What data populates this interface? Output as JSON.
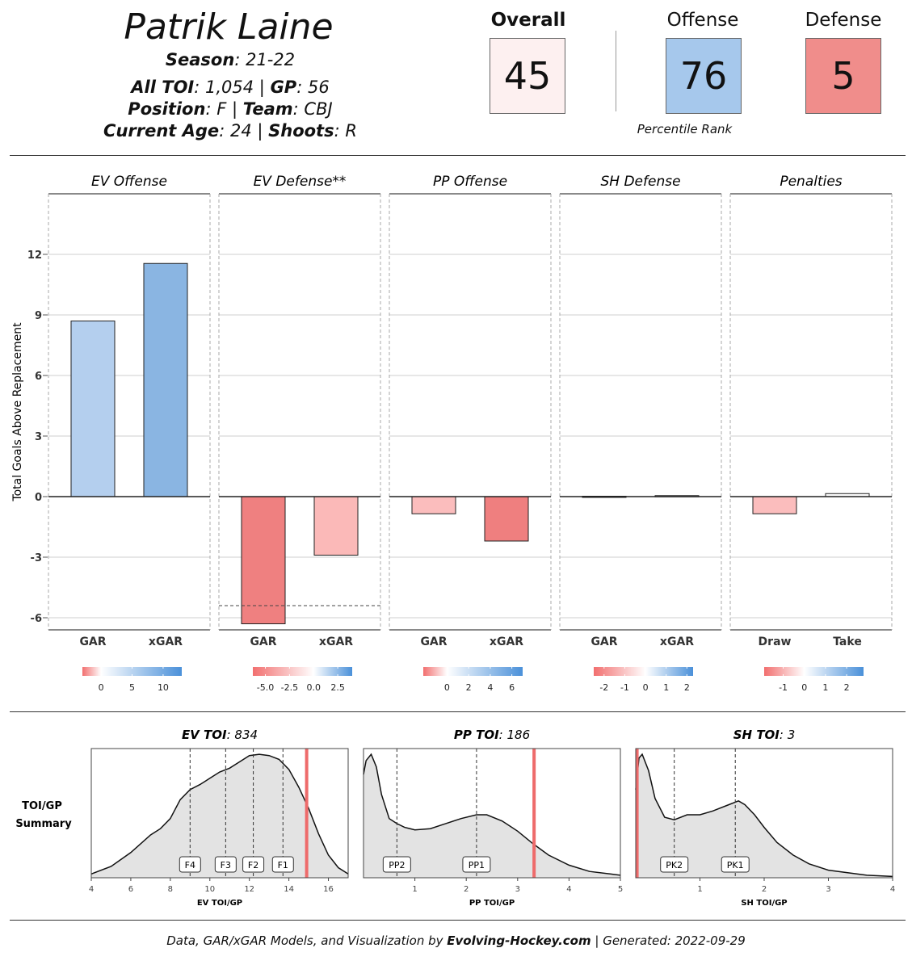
{
  "header": {
    "player_name": "Patrik Laine",
    "season_label": "Season",
    "season_value": "21-22",
    "toi_label": "All TOI",
    "toi_value": "1,054",
    "gp_label": "GP",
    "gp_value": "56",
    "position_label": "Position",
    "position_value": "F",
    "team_label": "Team",
    "team_value": "CBJ",
    "age_label": "Current Age",
    "age_value": "24",
    "shoots_label": "Shoots",
    "shoots_value": "R"
  },
  "ranks": {
    "overall_label": "Overall",
    "overall_value": "45",
    "overall_color": "#fdf0f0",
    "offense_label": "Offense",
    "offense_value": "76",
    "offense_color": "#a6c8ec",
    "defense_label": "Defense",
    "defense_value": "5",
    "defense_color": "#f08d8b",
    "subtitle": "Percentile Rank"
  },
  "chart_data": [
    {
      "type": "bar",
      "ylabel": "Total Goals Above Replacement",
      "ylim": [
        -6.6,
        15
      ],
      "yticks": [
        -6,
        -3,
        0,
        3,
        6,
        9,
        12
      ],
      "panels": [
        {
          "title": "EV Offense",
          "categories": [
            "GAR",
            "xGAR"
          ],
          "values": [
            8.7,
            11.55
          ],
          "colors": [
            "#b4cfee",
            "#8ab5e2"
          ],
          "legend_ticks": [
            "0",
            "5",
            "10"
          ],
          "legend_min": -3,
          "legend_max": 13
        },
        {
          "title": "EV Defense**",
          "categories": [
            "GAR",
            "xGAR"
          ],
          "values": [
            -6.3,
            -2.9
          ],
          "colors": [
            "#ef8080",
            "#fbb9b8"
          ],
          "reference_line": -5.4,
          "legend_ticks": [
            "-5.0",
            "-2.5",
            "0.0",
            "2.5"
          ],
          "legend_min": -6.3,
          "legend_max": 4.0
        },
        {
          "title": "PP Offense",
          "categories": [
            "GAR",
            "xGAR"
          ],
          "values": [
            -0.85,
            -2.2
          ],
          "colors": [
            "#fbbdbd",
            "#ef7f7f"
          ],
          "legend_ticks": [
            "0",
            "2",
            "4",
            "6"
          ],
          "legend_min": -2.2,
          "legend_max": 7.0
        },
        {
          "title": "SH Defense",
          "categories": [
            "GAR",
            "xGAR"
          ],
          "values": [
            0.02,
            0.05
          ],
          "colors": [
            "#fafafa",
            "#f7f7f7"
          ],
          "legend_ticks": [
            "-2",
            "-1",
            "0",
            "1",
            "2"
          ],
          "legend_min": -2.5,
          "legend_max": 2.3
        },
        {
          "title": "Penalties",
          "categories": [
            "Draw",
            "Take"
          ],
          "values": [
            -0.85,
            0.15
          ],
          "colors": [
            "#fbbdbd",
            "#fdfdfd"
          ],
          "legend_ticks": [
            "-1",
            "0",
            "1",
            "2"
          ],
          "legend_min": -1.9,
          "legend_max": 2.8
        }
      ]
    },
    {
      "type": "area",
      "row_label": "TOI/GP Summary",
      "panels": [
        {
          "title_label": "EV TOI",
          "title_value": "834",
          "xlabel": "EV TOI/GP",
          "xlim": [
            4,
            17
          ],
          "xticks": [
            4,
            6,
            8,
            10,
            12,
            14,
            16
          ],
          "player_value": 14.9,
          "markers": [
            {
              "label": "F4",
              "x": 9.0
            },
            {
              "label": "F3",
              "x": 10.8
            },
            {
              "label": "F2",
              "x": 12.2
            },
            {
              "label": "F1",
              "x": 13.7
            }
          ],
          "density_x": [
            4,
            5,
            6,
            7,
            7.5,
            8,
            8.5,
            9,
            9.5,
            10,
            10.5,
            11,
            11.5,
            12,
            12.5,
            13,
            13.5,
            14,
            14.5,
            15,
            15.5,
            16,
            16.5,
            17
          ],
          "density_y": [
            0.03,
            0.09,
            0.2,
            0.34,
            0.39,
            0.47,
            0.62,
            0.7,
            0.74,
            0.79,
            0.84,
            0.87,
            0.92,
            0.97,
            0.98,
            0.97,
            0.94,
            0.86,
            0.72,
            0.55,
            0.35,
            0.18,
            0.08,
            0.03
          ]
        },
        {
          "title_label": "PP TOI",
          "title_value": "186",
          "xlabel": "PP TOI/GP",
          "xlim": [
            0,
            5
          ],
          "xticks": [
            1,
            2,
            3,
            4,
            5
          ],
          "player_value": 3.32,
          "markers": [
            {
              "label": "PP2",
              "x": 0.65
            },
            {
              "label": "PP1",
              "x": 2.2
            }
          ],
          "density_x": [
            0,
            0.05,
            0.15,
            0.25,
            0.35,
            0.5,
            0.65,
            0.8,
            1.0,
            1.3,
            1.6,
            1.9,
            2.2,
            2.4,
            2.7,
            3.0,
            3.3,
            3.6,
            4.0,
            4.4,
            4.8,
            5.0
          ],
          "density_y": [
            0.82,
            0.93,
            0.98,
            0.88,
            0.66,
            0.47,
            0.43,
            0.4,
            0.38,
            0.39,
            0.43,
            0.47,
            0.5,
            0.5,
            0.45,
            0.37,
            0.27,
            0.18,
            0.1,
            0.05,
            0.03,
            0.02
          ]
        },
        {
          "title_label": "SH TOI",
          "title_value": "3",
          "xlabel": "SH TOI/GP",
          "xlim": [
            0,
            4
          ],
          "xticks": [
            1,
            2,
            3,
            4
          ],
          "player_value": 0.02,
          "markers": [
            {
              "label": "PK2",
              "x": 0.6
            },
            {
              "label": "PK1",
              "x": 1.55
            }
          ],
          "density_x": [
            0,
            0.05,
            0.1,
            0.2,
            0.3,
            0.45,
            0.6,
            0.8,
            1.0,
            1.2,
            1.45,
            1.6,
            1.7,
            1.85,
            2.0,
            2.2,
            2.45,
            2.7,
            3.0,
            3.3,
            3.6,
            4.0
          ],
          "density_y": [
            0.7,
            0.95,
            0.98,
            0.85,
            0.63,
            0.48,
            0.46,
            0.5,
            0.5,
            0.53,
            0.58,
            0.61,
            0.58,
            0.5,
            0.4,
            0.28,
            0.18,
            0.11,
            0.06,
            0.04,
            0.02,
            0.01
          ]
        }
      ]
    }
  ],
  "footer": {
    "prefix": "Data, GAR/xGAR Models, and Visualization by ",
    "brand": "Evolving-Hockey.com",
    "suffix": " | Generated: 2022-09-29"
  }
}
